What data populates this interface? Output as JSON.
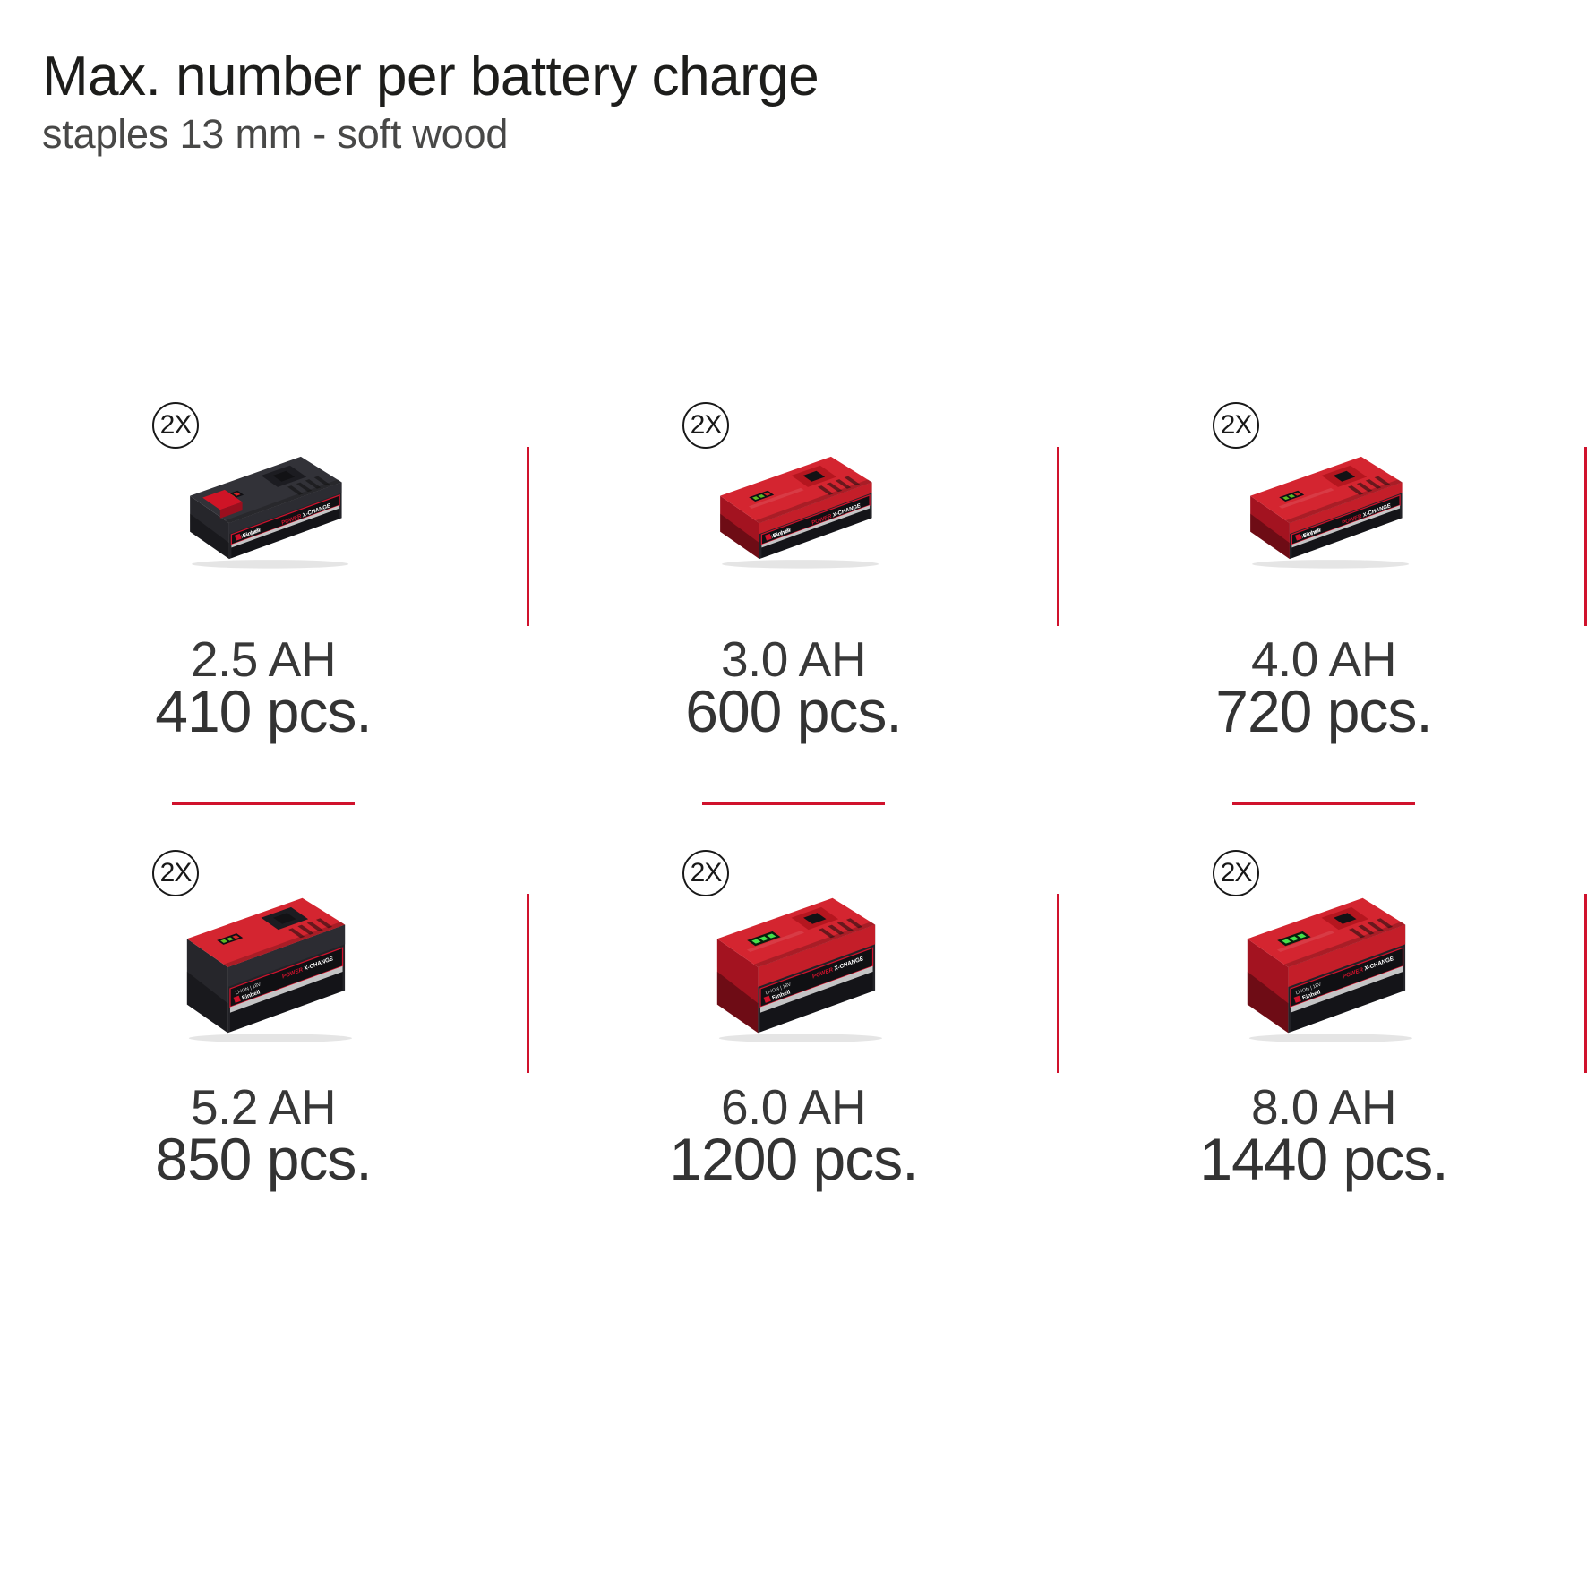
{
  "header": {
    "title": "Max. number per battery charge",
    "subtitle": "staples 13 mm - soft wood"
  },
  "badge": {
    "label": "2X"
  },
  "brand": {
    "name": "Einhell",
    "logo_label_left": "POWER",
    "logo_label_right": "X-CHANGE",
    "spec": "Li-ION | 18V"
  },
  "colors": {
    "accent_red": "#d0122c",
    "title_text": "#1d1d1b",
    "subtitle_text": "#484847",
    "value_text": "#333333"
  },
  "cells": [
    {
      "capacity": "2.5 AH",
      "count": "410 pcs.",
      "battery_icon": "einhell-power-x-change-battery-2-5ah-icon",
      "style": "compact-black"
    },
    {
      "capacity": "3.0 AH",
      "count": "600 pcs.",
      "battery_icon": "einhell-power-x-change-battery-3-0ah-icon",
      "style": "compact-red"
    },
    {
      "capacity": "4.0 AH",
      "count": "720 pcs.",
      "battery_icon": "einhell-power-x-change-battery-4-0ah-icon",
      "style": "compact-red"
    },
    {
      "capacity": "5.2 AH",
      "count": "850 pcs.",
      "battery_icon": "einhell-power-x-change-battery-5-2ah-icon",
      "style": "plus-black"
    },
    {
      "capacity": "6.0 AH",
      "count": "1200 pcs.",
      "battery_icon": "einhell-power-x-change-battery-6-0ah-icon",
      "style": "plus-red"
    },
    {
      "capacity": "8.0 AH",
      "count": "1440 pcs.",
      "battery_icon": "einhell-power-x-change-battery-8-0ah-icon",
      "style": "plus-red"
    }
  ]
}
